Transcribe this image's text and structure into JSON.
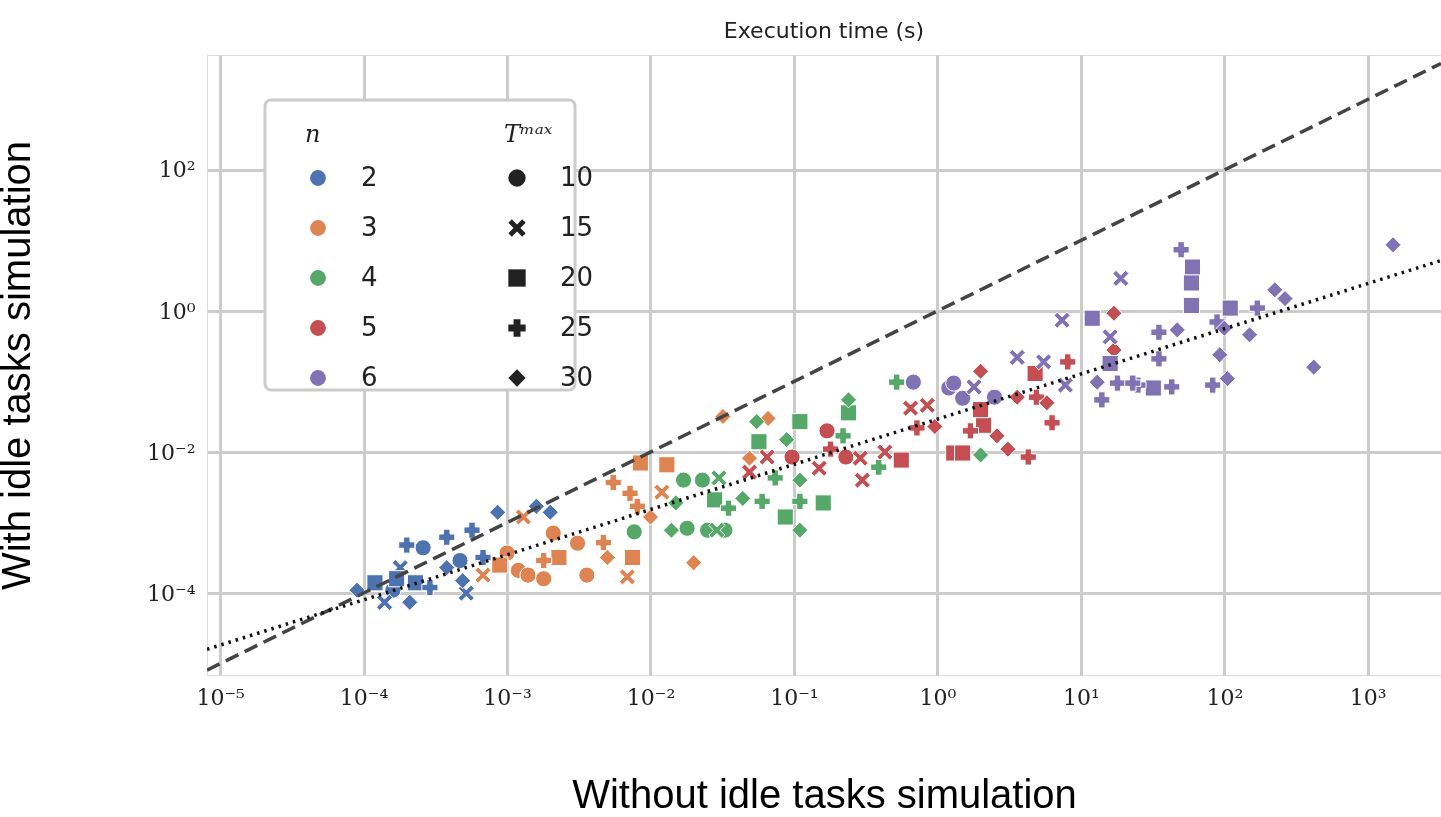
{
  "chart_data": {
    "type": "scatter",
    "title": "Execution time (s)",
    "xlabel": "Without idle tasks simulation",
    "ylabel": "With idle tasks simulation",
    "legend_title": [
      "n",
      "Tᵐᵃˣ"
    ],
    "legend": "top left",
    "grid": true,
    "log": "xy",
    "xlim": [
      8.1e-06,
      3240
    ],
    "ylim": [
      6.9e-06,
      4270
    ],
    "xticks": [
      {
        "value": 1e-05,
        "label": "10⁻⁵"
      },
      {
        "value": 0.0001,
        "label": "10⁻⁴"
      },
      {
        "value": 0.001,
        "label": "10⁻³"
      },
      {
        "value": 0.01,
        "label": "10⁻²"
      },
      {
        "value": 0.1,
        "label": "10⁻¹"
      },
      {
        "value": 1,
        "label": "10⁰"
      },
      {
        "value": 10,
        "label": "10¹"
      },
      {
        "value": 100,
        "label": "10²"
      },
      {
        "value": 1000,
        "label": "10³"
      }
    ],
    "yticks": [
      {
        "value": 0.0001,
        "label": "10⁻⁴"
      },
      {
        "value": 0.01,
        "label": "10⁻²"
      },
      {
        "value": 1,
        "label": "10⁰"
      },
      {
        "value": 100,
        "label": "10²"
      }
    ],
    "series": [
      {
        "name": "2",
        "color": "#4c72b0",
        "marker": "circle",
        "x": [
          0.00026,
          0.00047,
          0.00016
        ],
        "values": [
          0.00044,
          0.00029,
          0.00011
        ]
      },
      {
        "color": "#4c72b0",
        "marker": "cross",
        "x": [
          0.00052,
          0.00014,
          0.00018
        ],
        "values": [
          0.0001,
          7.4e-05,
          0.00023
        ]
      },
      {
        "color": "#4c72b0",
        "marker": "square",
        "x": [
          0.00012,
          0.00023,
          0.00017
        ],
        "values": [
          0.00014,
          0.00014,
          0.00016
        ]
      },
      {
        "color": "#4c72b0",
        "marker": "plus",
        "x": [
          0.0002,
          0.00038,
          0.00057,
          0.00029,
          0.00068
        ],
        "values": [
          0.00048,
          0.00062,
          0.00078,
          0.00012,
          0.00032
        ]
      },
      {
        "color": "#4c72b0",
        "marker": "diamond",
        "x": [
          9e-05,
          0.00021,
          0.00086,
          0.0016,
          0.002,
          0.00049,
          0.00038
        ],
        "values": [
          0.00011,
          7.4e-05,
          0.0014,
          0.0017,
          0.0014,
          0.00015,
          0.00023
        ]
      },
      {
        "name": "3",
        "color": "#dd8452",
        "marker": "circle",
        "x": [
          0.0012,
          0.0014,
          0.0018,
          0.0021,
          0.0031,
          0.0036,
          0.001
        ],
        "values": [
          0.00021,
          0.00018,
          0.00016,
          0.00071,
          0.00051,
          0.00018,
          0.00037
        ]
      },
      {
        "color": "#dd8452",
        "marker": "cross",
        "x": [
          0.00068,
          0.0069,
          0.0013,
          0.012
        ],
        "values": [
          0.00018,
          0.00017,
          0.0012,
          0.0027
        ]
      },
      {
        "color": "#dd8452",
        "marker": "square",
        "x": [
          0.00089,
          0.0023,
          0.0075,
          0.0085,
          0.013
        ],
        "values": [
          0.00025,
          0.00032,
          0.00032,
          0.007,
          0.0066
        ]
      },
      {
        "color": "#dd8452",
        "marker": "plus",
        "x": [
          0.0018,
          0.0047,
          0.0055,
          0.0072,
          0.0081
        ],
        "values": [
          0.00029,
          0.00052,
          0.0037,
          0.0026,
          0.0017
        ]
      },
      {
        "color": "#dd8452",
        "marker": "diamond",
        "x": [
          0.005,
          0.02,
          0.01,
          0.032,
          0.066,
          0.049
        ],
        "values": [
          0.00032,
          0.00027,
          0.0012,
          0.032,
          0.03,
          0.0082
        ]
      },
      {
        "name": "4",
        "color": "#55a868",
        "marker": "circle",
        "x": [
          0.017,
          0.023,
          0.018,
          0.025,
          0.033,
          0.0077
        ],
        "values": [
          0.004,
          0.004,
          0.00083,
          0.00078,
          0.00078,
          0.00074
        ]
      },
      {
        "color": "#55a868",
        "marker": "cross",
        "x": [
          0.03,
          0.029
        ],
        "values": [
          0.0043,
          0.00078
        ]
      },
      {
        "color": "#55a868",
        "marker": "square",
        "x": [
          0.028,
          0.16,
          0.087,
          0.057,
          0.11,
          0.24
        ],
        "values": [
          0.0021,
          0.0019,
          0.0012,
          0.014,
          0.027,
          0.036
        ]
      },
      {
        "color": "#55a868",
        "marker": "plus",
        "x": [
          0.035,
          0.06,
          0.11,
          0.22,
          0.074,
          0.39,
          0.52
        ],
        "values": [
          0.0016,
          0.002,
          0.002,
          0.017,
          0.0043,
          0.0061,
          0.098
        ]
      },
      {
        "color": "#55a868",
        "marker": "diamond",
        "x": [
          0.015,
          0.044,
          0.11,
          0.014,
          0.055,
          0.089,
          0.24,
          0.11,
          2.0
        ],
        "values": [
          0.0019,
          0.0022,
          0.00078,
          0.00078,
          0.027,
          0.015,
          0.055,
          0.004,
          0.0091
        ]
      },
      {
        "name": "5",
        "color": "#c44e52",
        "marker": "circle",
        "x": [
          0.097,
          0.17,
          0.23
        ],
        "values": [
          0.0085,
          0.02,
          0.0085
        ]
      },
      {
        "color": "#c44e52",
        "marker": "cross",
        "x": [
          0.049,
          0.065,
          0.15,
          0.29,
          0.43,
          0.3,
          0.65,
          0.85
        ],
        "values": [
          0.0052,
          0.0085,
          0.0059,
          0.0082,
          0.01,
          0.004,
          0.042,
          0.046
        ]
      },
      {
        "color": "#c44e52",
        "marker": "square",
        "x": [
          0.56,
          1.3,
          1.5,
          2.1,
          4.8,
          2.0
        ],
        "values": [
          0.0077,
          0.0097,
          0.0097,
          0.024,
          0.13,
          0.04
        ]
      },
      {
        "color": "#c44e52",
        "marker": "plus",
        "x": [
          0.18,
          0.72,
          1.7,
          4.3,
          8.1,
          6.3,
          4.9
        ],
        "values": [
          0.011,
          0.022,
          0.02,
          0.0085,
          0.19,
          0.026,
          0.06
        ]
      },
      {
        "color": "#c44e52",
        "marker": "diamond",
        "x": [
          0.96,
          2.0,
          2.6,
          3.1,
          3.6,
          5.8,
          17,
          17
        ],
        "values": [
          0.023,
          0.14,
          0.017,
          0.011,
          0.06,
          0.05,
          0.93,
          0.28
        ]
      },
      {
        "name": "6",
        "color": "#8172b3",
        "marker": "circle",
        "x": [
          0.68,
          1.2,
          1.3,
          1.5,
          2.5
        ],
        "values": [
          0.098,
          0.081,
          0.095,
          0.058,
          0.06
        ]
      },
      {
        "color": "#8172b3",
        "marker": "cross",
        "x": [
          1.8,
          3.6,
          5.5,
          7.4,
          16,
          7.8,
          19
        ],
        "values": [
          0.084,
          0.22,
          0.19,
          0.74,
          0.43,
          0.089,
          2.9
        ]
      },
      {
        "color": "#8172b3",
        "marker": "square",
        "x": [
          12,
          32,
          60,
          59,
          59,
          16,
          110
        ],
        "values": [
          0.79,
          0.081,
          4.2,
          2.5,
          1.2,
          0.18,
          1.1
        ]
      },
      {
        "color": "#8172b3",
        "marker": "plus",
        "x": [
          18,
          35,
          35,
          14,
          25,
          43,
          50,
          23,
          170,
          89,
          83
        ],
        "values": [
          0.095,
          0.5,
          0.21,
          0.055,
          0.089,
          0.084,
          7.4,
          0.095,
          1.1,
          0.7,
          0.089
        ]
      },
      {
        "color": "#8172b3",
        "marker": "diamond",
        "x": [
          13,
          47,
          225,
          265,
          100,
          150,
          93,
          105,
          420,
          1500
        ],
        "values": [
          0.098,
          0.54,
          2.0,
          1.5,
          0.57,
          0.46,
          0.24,
          0.11,
          0.16,
          8.7
        ]
      },
      {
        "name": "10",
        "color": "#222222",
        "marker": "circle"
      },
      {
        "name": "15",
        "color": "#222222",
        "marker": "cross"
      },
      {
        "name": "20",
        "color": "#222222",
        "marker": "square"
      },
      {
        "name": "25",
        "color": "#222222",
        "marker": "plus"
      },
      {
        "name": "30",
        "color": "#222222",
        "marker": "diamond"
      },
      {
        "type": "line",
        "color": "#444444",
        "line_style": "dashed",
        "x": [
          8.1e-06,
          3240
        ],
        "values": [
          8.1e-06,
          3240
        ]
      },
      {
        "type": "line",
        "color": "#111111",
        "line_style": "dotted",
        "x": [
          8.1e-06,
          3240
        ],
        "values": [
          1.6e-05,
          5.2
        ]
      }
    ]
  }
}
